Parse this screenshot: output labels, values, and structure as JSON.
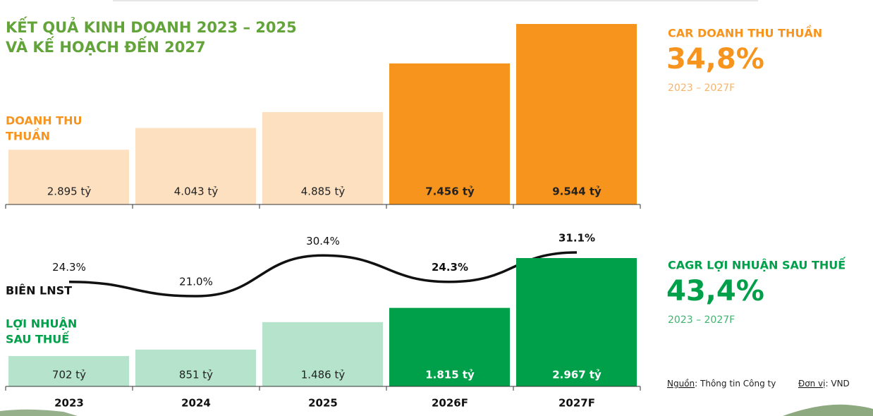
{
  "header": {
    "title_lines": [
      "KẾT QUẢ KINH DOANH 2023 – 2025",
      "VÀ KẾ HOẠCH ĐẾN 2027"
    ]
  },
  "chart_data": [
    {
      "type": "bar",
      "label_lines": [
        "DOANH THU",
        "THUẦN"
      ],
      "label_color": "#f7941d",
      "values": [
        2895,
        4043,
        4885,
        7456,
        9544
      ],
      "value_labels": [
        "2.895 tỷ",
        "4.043 tỷ",
        "4.885 tỷ",
        "7.456 tỷ",
        "9.544 tỷ"
      ],
      "colors": [
        "#fde0c0",
        "#fde0c0",
        "#fde0c0",
        "#f7941d",
        "#f7941d"
      ]
    },
    {
      "type": "line",
      "label_lines": [
        "BIÊN LNST"
      ],
      "label_color": "#111111",
      "color": "#111111",
      "values": [
        24.3,
        21.0,
        30.4,
        24.3,
        31.1
      ],
      "value_labels": [
        "24.3%",
        "21.0%",
        "30.4%",
        "24.3%",
        "31.1%"
      ]
    },
    {
      "type": "bar",
      "label_lines": [
        "LỢI NHUẬN",
        "SAU THUẾ"
      ],
      "label_color": "#00a04a",
      "categories": [
        "2023",
        "2024",
        "2025",
        "2026F",
        "2027F"
      ],
      "values": [
        702,
        851,
        1486,
        1815,
        2967
      ],
      "value_labels": [
        "702 tỷ",
        "851 tỷ",
        "1.486 tỷ",
        "1.815 tỷ",
        "2.967 tỷ"
      ],
      "colors": [
        "#b5e3cb",
        "#b5e3cb",
        "#b5e3cb",
        "#00a04a",
        "#00a04a"
      ]
    }
  ],
  "stats": [
    {
      "title": "CAR DOANH THU THUẦN",
      "value": "34,8%",
      "period": "2023 – 2027F",
      "color": "#f7941d",
      "period_color": "#f6b36b"
    },
    {
      "title": "CAGR LỢI NHUẬN SAU THUẾ",
      "value": "43,4%",
      "period": "2023 – 2027F",
      "color": "#00a04a",
      "period_color": "#3fb36f"
    }
  ],
  "source": {
    "label": "Nguồn",
    "text": ": Thông tin Công ty",
    "unit_label": "Đơn vị",
    "unit_text": ": VND"
  }
}
